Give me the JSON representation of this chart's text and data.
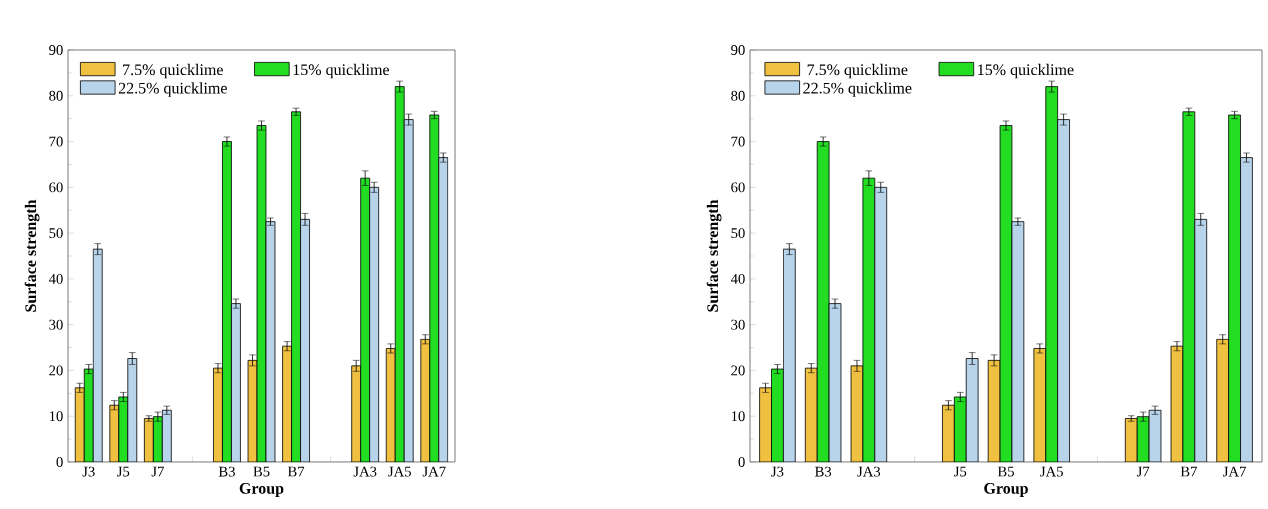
{
  "chart_data": [
    {
      "type": "bar",
      "xlabel": "Group",
      "ylabel": "Surface strength",
      "ylim": [
        0,
        90
      ],
      "yticks": [
        0,
        10,
        20,
        30,
        40,
        50,
        60,
        70,
        80,
        90
      ],
      "legend": "top left",
      "categories": [
        "J3",
        "J5",
        "J7",
        null,
        "B3",
        "B5",
        "B7",
        null,
        "JA3",
        "JA5",
        "JA7"
      ],
      "series": [
        {
          "name": "7.5% quicklime",
          "color": "#f0c040",
          "values": [
            16.2,
            12.4,
            9.5,
            null,
            20.5,
            22.2,
            25.3,
            null,
            21.0,
            24.8,
            26.8
          ],
          "errors": [
            1,
            1,
            0.6,
            null,
            1,
            1.2,
            1,
            null,
            1.2,
            1,
            1
          ]
        },
        {
          "name": "15% quicklime",
          "color": "#22dd22",
          "values": [
            20.3,
            14.2,
            9.9,
            null,
            70.0,
            73.5,
            76.5,
            null,
            62.0,
            82.0,
            75.8
          ],
          "errors": [
            1,
            1,
            1,
            null,
            1,
            1,
            0.8,
            null,
            1.6,
            1.2,
            0.8
          ]
        },
        {
          "name": "22.5% quicklime",
          "color": "#b8d4ea",
          "values": [
            46.5,
            22.6,
            11.3,
            null,
            34.6,
            52.5,
            53.0,
            null,
            60.0,
            74.8,
            66.5
          ],
          "errors": [
            1.2,
            1.3,
            0.9,
            null,
            1,
            0.8,
            1.3,
            null,
            1.1,
            1.2,
            1
          ]
        }
      ]
    },
    {
      "type": "bar",
      "xlabel": "Group",
      "ylabel": "Surface strength",
      "ylim": [
        0,
        90
      ],
      "yticks": [
        0,
        10,
        20,
        30,
        40,
        50,
        60,
        70,
        80,
        90
      ],
      "legend": "top left",
      "categories": [
        "J3",
        "B3",
        "JA3",
        null,
        "J5",
        "B5",
        "JA5",
        null,
        "J7",
        "B7",
        "JA7"
      ],
      "series": [
        {
          "name": "7.5% quicklime",
          "color": "#f0c040",
          "values": [
            16.2,
            20.5,
            21.0,
            null,
            12.4,
            22.2,
            24.8,
            null,
            9.5,
            25.3,
            26.8
          ],
          "errors": [
            1,
            1,
            1.2,
            null,
            1,
            1.2,
            1,
            null,
            0.6,
            1,
            1
          ]
        },
        {
          "name": "15% quicklime",
          "color": "#22dd22",
          "values": [
            20.3,
            70.0,
            62.0,
            null,
            14.2,
            73.5,
            82.0,
            null,
            9.9,
            76.5,
            75.8
          ],
          "errors": [
            1,
            1,
            1.6,
            null,
            1,
            1,
            1.2,
            null,
            1,
            0.8,
            0.8
          ]
        },
        {
          "name": "22.5% quicklime",
          "color": "#b8d4ea",
          "values": [
            46.5,
            34.6,
            60.0,
            null,
            22.6,
            52.5,
            74.8,
            null,
            11.3,
            53.0,
            66.5
          ],
          "errors": [
            1.2,
            1,
            1.1,
            null,
            1.3,
            0.8,
            1.2,
            null,
            0.9,
            1.3,
            1
          ]
        }
      ]
    }
  ]
}
